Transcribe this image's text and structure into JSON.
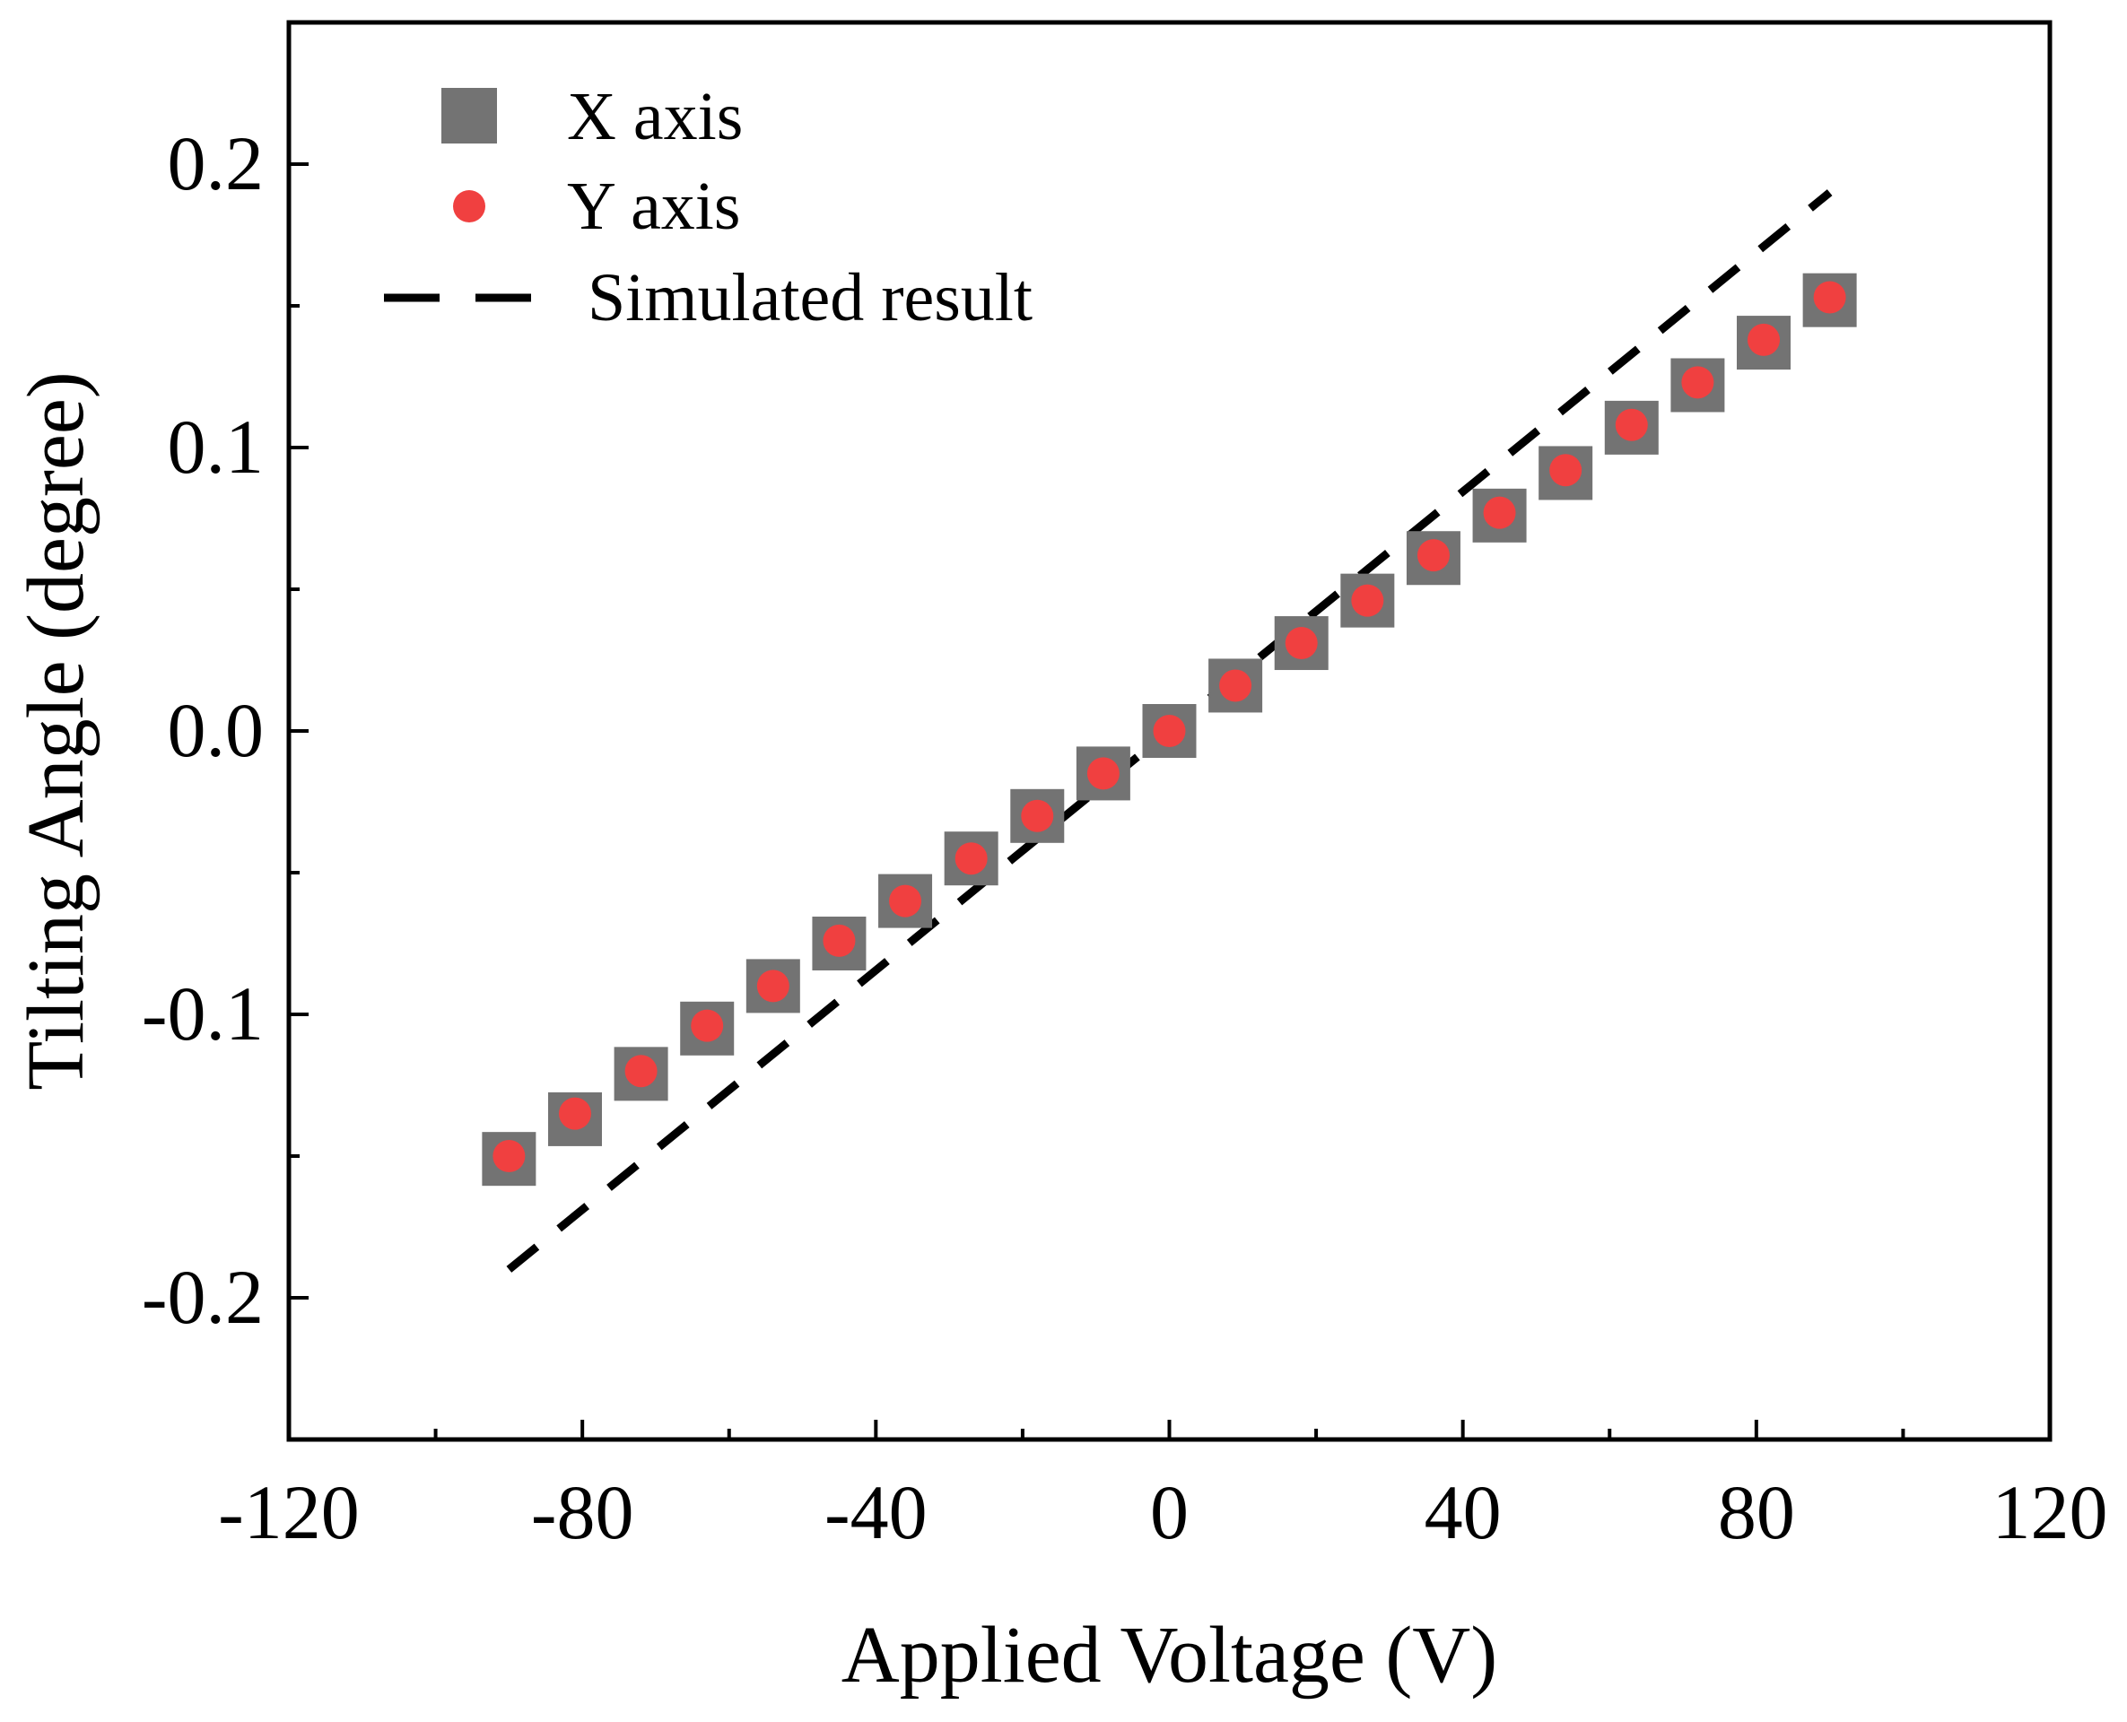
{
  "chart_data": {
    "type": "scatter",
    "title": "",
    "xlabel": "Applied Voltage (V)",
    "ylabel": "Tilting Angle (degree)",
    "xlim": [
      -120,
      120
    ],
    "ylim": [
      -0.25,
      0.25
    ],
    "xticks": [
      -120,
      -80,
      -40,
      0,
      40,
      80,
      120
    ],
    "xtick_labels": [
      "-120",
      "-80",
      "-40",
      "0",
      "40",
      "80",
      "120"
    ],
    "yticks": [
      -0.2,
      -0.1,
      0.0,
      0.1,
      0.2
    ],
    "ytick_labels": [
      "-0.2",
      "-0.1",
      "0.0",
      "0.1",
      "0.2"
    ],
    "grid": false,
    "legend_position": "top-left",
    "series": [
      {
        "name": "X axis",
        "marker": "square",
        "color": "#737373",
        "x": [
          -90,
          -81,
          -72,
          -63,
          -54,
          -45,
          -36,
          -27,
          -18,
          -9,
          0,
          9,
          18,
          27,
          36,
          45,
          54,
          63,
          72,
          81,
          90
        ],
        "y": [
          -0.151,
          -0.137,
          -0.121,
          -0.105,
          -0.09,
          -0.075,
          -0.06,
          -0.045,
          -0.03,
          -0.015,
          0.0,
          0.016,
          0.031,
          0.046,
          0.061,
          0.076,
          0.091,
          0.107,
          0.122,
          0.137,
          0.152
        ]
      },
      {
        "name": "Y axis",
        "marker": "circle",
        "color": "#f04040",
        "x": [
          -90,
          -81,
          -72,
          -63,
          -54,
          -45,
          -36,
          -27,
          -18,
          -9,
          0,
          9,
          18,
          27,
          36,
          45,
          54,
          63,
          72,
          81,
          90
        ],
        "y": [
          -0.15,
          -0.135,
          -0.12,
          -0.104,
          -0.09,
          -0.074,
          -0.06,
          -0.045,
          -0.03,
          -0.015,
          0.0,
          0.016,
          0.031,
          0.046,
          0.062,
          0.077,
          0.092,
          0.108,
          0.123,
          0.138,
          0.153
        ]
      },
      {
        "name": "Simulated result",
        "marker": "dashed-line",
        "color": "#000000",
        "x": [
          -90,
          90
        ],
        "y": [
          -0.19,
          0.19
        ]
      }
    ]
  }
}
